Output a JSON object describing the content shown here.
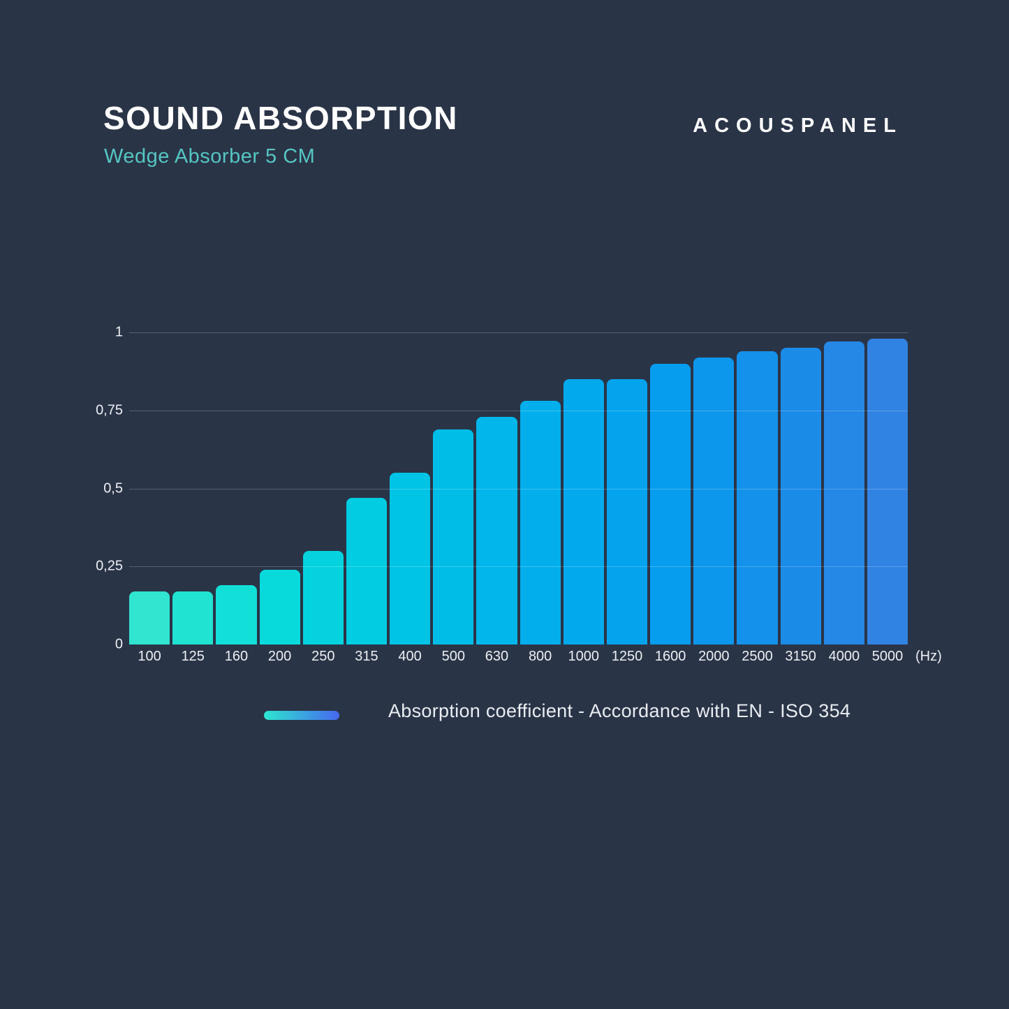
{
  "page": {
    "background_color": "#2A3447"
  },
  "header": {
    "title": "SOUND ABSORPTION",
    "subtitle": "Wedge Absorber 5 CM",
    "brand": "ACOUSPANEL",
    "title_color": "#FFFFFF",
    "subtitle_color": "#55C6C2"
  },
  "chart_data": {
    "type": "bar",
    "title": "SOUND ABSORPTION",
    "subtitle": "Wedge Absorber 5 CM",
    "categories": [
      "100",
      "125",
      "160",
      "200",
      "250",
      "315",
      "400",
      "500",
      "630",
      "800",
      "1000",
      "1250",
      "1600",
      "2000",
      "2500",
      "3150",
      "4000",
      "5000"
    ],
    "values": [
      0.17,
      0.17,
      0.19,
      0.24,
      0.3,
      0.47,
      0.55,
      0.69,
      0.73,
      0.78,
      0.85,
      0.85,
      0.9,
      0.92,
      0.94,
      0.95,
      0.97,
      0.98
    ],
    "bar_colors": [
      "#31E5D1",
      "#20E3D1",
      "#12DFD7",
      "#08DADC",
      "#04D3DF",
      "#00CCE2",
      "#00C4E5",
      "#00BDE8",
      "#00B6EA",
      "#02AFEC",
      "#03A9ED",
      "#04A3EE",
      "#079DEE",
      "#0D97EC",
      "#1491EA",
      "#1B8BE8",
      "#2587E6",
      "#3183E3"
    ],
    "xlabel": "(Hz)",
    "ylabel": "",
    "ylim": [
      0,
      1
    ],
    "yticks": [
      {
        "label": "1",
        "value": 1
      },
      {
        "label": "0,75",
        "value": 0.75
      },
      {
        "label": "0,5",
        "value": 0.5
      },
      {
        "label": "0,25",
        "value": 0.25
      },
      {
        "label": "0",
        "value": 0
      }
    ],
    "grid": true,
    "grid_drawn_for_zero": false,
    "legend": {
      "position": "bottom",
      "label": "Absorption coefficient - Accordance with EN - ISO 354",
      "swatch_gradient": [
        "#2EE6D0",
        "#4668EF"
      ]
    }
  }
}
